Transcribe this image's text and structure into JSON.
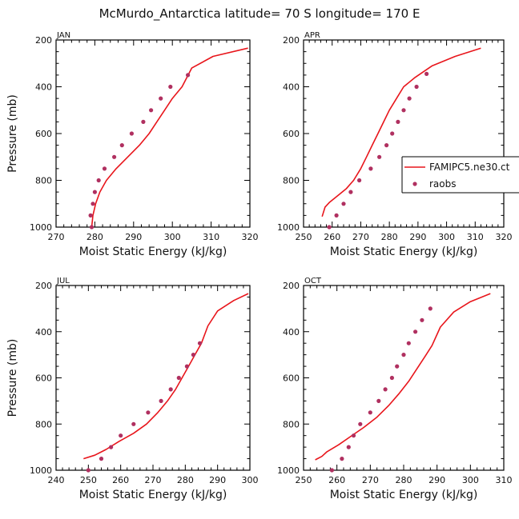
{
  "figure_title": "McMurdo_Antarctica  latitude= 70 S longitude= 170 E",
  "colors": {
    "model": "#e8151b",
    "raobs": "#b03060",
    "axis": "#000000"
  },
  "legend": {
    "model_label": "FAMIPC5.ne30.ct",
    "obs_label": "raobs",
    "placement": "right of APR panel"
  },
  "chart_data": [
    {
      "type": "line",
      "panel": "JAN",
      "xlabel": "Moist Static Energy (kJ/kg)",
      "ylabel": "Pressure (mb)",
      "xlim": [
        270,
        320
      ],
      "xticks": [
        270,
        280,
        290,
        300,
        310,
        320
      ],
      "ylim": [
        1000,
        200
      ],
      "yticks": [
        200,
        400,
        600,
        800,
        1000
      ],
      "series": [
        {
          "name": "FAMIPC5.ne30.ct",
          "style": "line",
          "x": [
            279.2,
            279.5,
            280.2,
            281.3,
            283.0,
            285.5,
            288.5,
            291.5,
            294.0,
            296.0,
            298.0,
            300.0,
            302.5,
            305.0,
            310.5,
            319.5
          ],
          "y": [
            1000,
            950,
            900,
            850,
            800,
            750,
            700,
            650,
            600,
            550,
            500,
            450,
            400,
            320,
            270,
            235
          ]
        },
        {
          "name": "raobs",
          "style": "markers",
          "x": [
            279.2,
            278.9,
            279.5,
            280.0,
            281.0,
            282.5,
            285.0,
            287.0,
            289.5,
            292.5,
            294.5,
            297.0,
            299.5,
            304.0
          ],
          "y": [
            1000,
            950,
            900,
            850,
            800,
            750,
            700,
            650,
            600,
            550,
            500,
            450,
            400,
            350
          ]
        }
      ]
    },
    {
      "type": "line",
      "panel": "APR",
      "xlabel": "Moist Static Energy (kJ/kg)",
      "ylabel": "",
      "xlim": [
        250,
        320
      ],
      "xticks": [
        250,
        260,
        270,
        280,
        290,
        300,
        310,
        320
      ],
      "ylim": [
        1000,
        200
      ],
      "yticks": [
        200,
        400,
        600,
        800,
        1000
      ],
      "series": [
        {
          "name": "FAMIPC5.ne30.ct",
          "style": "line",
          "x": [
            256.5,
            257.5,
            259.0,
            262.0,
            265.0,
            267.5,
            270.0,
            272.0,
            274.0,
            276.0,
            278.0,
            280.0,
            282.5,
            285.0,
            289.0,
            295.0,
            303.0,
            312.0
          ],
          "y": [
            955,
            915,
            895,
            865,
            835,
            800,
            750,
            700,
            650,
            600,
            550,
            500,
            450,
            400,
            360,
            310,
            270,
            235
          ]
        },
        {
          "name": "raobs",
          "style": "markers",
          "x": [
            259.0,
            261.5,
            264.0,
            266.5,
            269.5,
            273.5,
            276.5,
            279.0,
            281.0,
            283.0,
            285.0,
            287.0,
            289.5,
            293.0
          ],
          "y": [
            1000,
            950,
            900,
            850,
            800,
            750,
            700,
            650,
            600,
            550,
            500,
            450,
            400,
            345
          ]
        }
      ]
    },
    {
      "type": "line",
      "panel": "JUL",
      "xlabel": "Moist Static Energy (kJ/kg)",
      "ylabel": "Pressure (mb)",
      "xlim": [
        240,
        300
      ],
      "xticks": [
        240,
        250,
        260,
        270,
        280,
        290,
        300
      ],
      "ylim": [
        1000,
        200
      ],
      "yticks": [
        200,
        400,
        600,
        800,
        1000
      ],
      "series": [
        {
          "name": "FAMIPC5.ne30.ct",
          "style": "line",
          "x": [
            248.5,
            252.0,
            255.5,
            259.5,
            264.0,
            268.0,
            271.5,
            274.5,
            277.0,
            279.0,
            281.0,
            283.0,
            285.0,
            287.0,
            290.0,
            295.0,
            299.5
          ],
          "y": [
            950,
            935,
            910,
            875,
            840,
            800,
            750,
            700,
            650,
            600,
            550,
            500,
            450,
            375,
            310,
            265,
            235
          ]
        },
        {
          "name": "raobs",
          "style": "markers",
          "x": [
            250.0,
            254.0,
            257.0,
            260.0,
            264.0,
            268.5,
            272.5,
            275.5,
            278.0,
            280.5,
            282.5,
            284.5
          ],
          "y": [
            1000,
            950,
            900,
            850,
            800,
            750,
            700,
            650,
            600,
            550,
            500,
            450
          ]
        }
      ]
    },
    {
      "type": "line",
      "panel": "OCT",
      "xlabel": "Moist Static Energy (kJ/kg)",
      "ylabel": "",
      "xlim": [
        250,
        310
      ],
      "xticks": [
        250,
        260,
        270,
        280,
        290,
        300,
        310
      ],
      "ylim": [
        1000,
        200
      ],
      "yticks": [
        200,
        400,
        600,
        800,
        1000
      ],
      "series": [
        {
          "name": "FAMIPC5.ne30.ct",
          "style": "line",
          "x": [
            253.5,
            255.5,
            257.0,
            260.5,
            264.0,
            268.0,
            272.0,
            275.5,
            278.5,
            281.5,
            284.0,
            286.5,
            288.5,
            291.0,
            295.0,
            300.0,
            306.0
          ],
          "y": [
            955,
            940,
            920,
            890,
            855,
            815,
            770,
            720,
            670,
            615,
            560,
            505,
            460,
            380,
            315,
            270,
            235
          ]
        },
        {
          "name": "raobs",
          "style": "markers",
          "x": [
            258.5,
            261.5,
            263.5,
            265.0,
            267.0,
            270.0,
            272.5,
            274.5,
            276.5,
            278.0,
            280.0,
            281.5,
            283.5,
            285.5,
            288.0
          ],
          "y": [
            1000,
            950,
            900,
            850,
            800,
            750,
            700,
            650,
            600,
            550,
            500,
            450,
            400,
            350,
            300
          ]
        }
      ]
    }
  ]
}
